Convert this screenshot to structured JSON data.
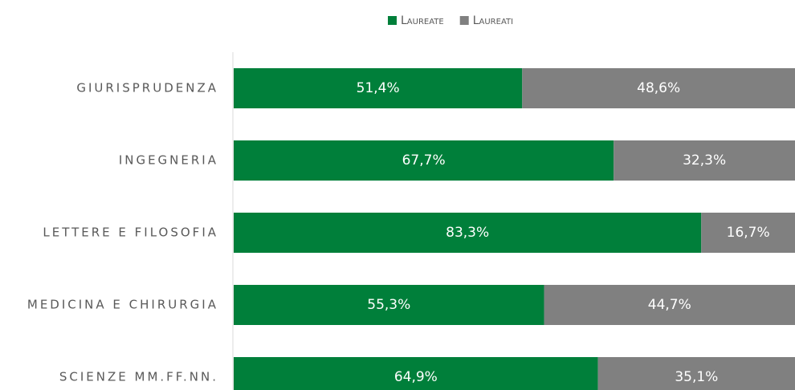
{
  "chart_data": {
    "type": "stacked_barh",
    "categories": [
      "GIURISPRUDENZA",
      "INGEGNERIA",
      "LETTERE E FILOSOFIA",
      "MEDICINA E CHIRURGIA",
      "SCIENZE MM.FF.NN."
    ],
    "series": [
      {
        "name": "Laureate",
        "color": "#007f3a",
        "values": [
          51.4,
          67.7,
          83.3,
          55.3,
          64.9
        ],
        "value_labels": [
          "51,4%",
          "67,7%",
          "83,3%",
          "55,3%",
          "64,9%"
        ]
      },
      {
        "name": "Laureati",
        "color": "#808080",
        "values": [
          48.6,
          32.3,
          16.7,
          44.7,
          35.1
        ],
        "value_labels": [
          "48,6%",
          "32,3%",
          "16,7%",
          "44,7%",
          "35,1%"
        ]
      }
    ],
    "xlim": [
      0,
      100
    ],
    "legend": "top"
  }
}
